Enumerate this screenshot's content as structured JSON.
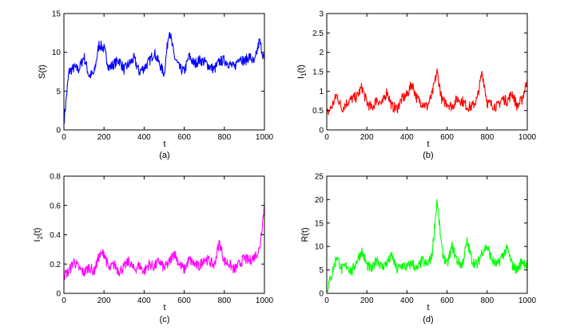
{
  "chart_data": [
    {
      "type": "line",
      "caption": "(a)",
      "xlabel": "t",
      "ylabel": "S(t)",
      "ylabel_parts": {
        "base": "S(t)",
        "sub": ""
      },
      "xlim": [
        0,
        1000
      ],
      "ylim": [
        0,
        15
      ],
      "xticks": [
        0,
        200,
        400,
        600,
        800,
        1000
      ],
      "yticks": [
        0,
        5,
        10,
        15
      ],
      "xtick_labels": [
        "0",
        "200",
        "400",
        "600",
        "800",
        "1000"
      ],
      "ytick_labels": [
        "0",
        "5",
        "10",
        "15"
      ],
      "color": "#0000ff",
      "grid": false,
      "series": [
        {
          "x": [
            0,
            25,
            50,
            75,
            100,
            125,
            150,
            175,
            200,
            225,
            250,
            275,
            300,
            325,
            350,
            375,
            400,
            425,
            450,
            475,
            500,
            525,
            550,
            575,
            600,
            625,
            650,
            675,
            700,
            725,
            750,
            775,
            800,
            825,
            850,
            875,
            900,
            925,
            950,
            975,
            1000
          ],
          "y": [
            1,
            7.5,
            8,
            7.8,
            9.5,
            7,
            7.2,
            11,
            10.5,
            8,
            8.5,
            9,
            7.8,
            8.5,
            9.2,
            7.5,
            8,
            8.8,
            10,
            8.6,
            7.2,
            13,
            9.5,
            8,
            7.5,
            9.5,
            8.5,
            9,
            8.8,
            8.2,
            7.8,
            8.8,
            9,
            8.5,
            8,
            9.5,
            8.8,
            9.5,
            8.6,
            11.5,
            9
          ]
        }
      ]
    },
    {
      "type": "line",
      "caption": "(b)",
      "xlabel": "t",
      "ylabel": "I1(t)",
      "ylabel_parts": {
        "base": "I",
        "sub": "1",
        "tail": "(t)"
      },
      "xlim": [
        0,
        1000
      ],
      "ylim": [
        0,
        3
      ],
      "xticks": [
        0,
        200,
        400,
        600,
        800,
        1000
      ],
      "yticks": [
        0,
        0.5,
        1,
        1.5,
        2,
        2.5,
        3
      ],
      "xtick_labels": [
        "0",
        "200",
        "400",
        "600",
        "800",
        "1000"
      ],
      "ytick_labels": [
        "0",
        "0.5",
        "1",
        "1.5",
        "2",
        "2.5",
        "3"
      ],
      "color": "#ff0000",
      "grid": false,
      "series": [
        {
          "x": [
            0,
            25,
            50,
            75,
            100,
            125,
            150,
            175,
            200,
            225,
            250,
            275,
            300,
            325,
            350,
            375,
            400,
            425,
            450,
            475,
            500,
            525,
            550,
            575,
            600,
            625,
            650,
            675,
            700,
            725,
            750,
            775,
            800,
            825,
            850,
            875,
            900,
            925,
            950,
            975,
            1000
          ],
          "y": [
            0.4,
            0.6,
            0.9,
            0.55,
            0.7,
            0.8,
            0.85,
            1.1,
            0.7,
            0.55,
            0.8,
            0.65,
            1.0,
            0.6,
            0.55,
            0.8,
            0.9,
            1.2,
            0.8,
            0.7,
            0.6,
            0.9,
            1.5,
            0.75,
            0.7,
            0.6,
            0.8,
            0.75,
            0.6,
            0.6,
            0.8,
            1.5,
            0.7,
            0.65,
            0.6,
            0.8,
            0.75,
            0.95,
            0.6,
            0.8,
            1.3
          ]
        }
      ]
    },
    {
      "type": "line",
      "caption": "(c)",
      "xlabel": "t",
      "ylabel": "I2(t)",
      "ylabel_parts": {
        "base": "I",
        "sub": "2",
        "tail": "(t)"
      },
      "xlim": [
        0,
        1000
      ],
      "ylim": [
        0,
        0.8
      ],
      "xticks": [
        0,
        200,
        400,
        600,
        800,
        1000
      ],
      "yticks": [
        0,
        0.2,
        0.4,
        0.6,
        0.8
      ],
      "xtick_labels": [
        "0",
        "200",
        "400",
        "600",
        "800",
        "1000"
      ],
      "ytick_labels": [
        "0",
        "0.2",
        "0.4",
        "0.6",
        "0.8"
      ],
      "color": "#ff00ff",
      "grid": false,
      "series": [
        {
          "x": [
            0,
            25,
            50,
            75,
            100,
            125,
            150,
            175,
            200,
            225,
            250,
            275,
            300,
            325,
            350,
            375,
            400,
            425,
            450,
            475,
            500,
            525,
            550,
            575,
            600,
            625,
            650,
            675,
            700,
            725,
            750,
            775,
            800,
            825,
            850,
            875,
            900,
            925,
            950,
            975,
            1000
          ],
          "y": [
            0.12,
            0.15,
            0.22,
            0.17,
            0.14,
            0.18,
            0.15,
            0.25,
            0.28,
            0.16,
            0.2,
            0.15,
            0.18,
            0.22,
            0.16,
            0.19,
            0.15,
            0.2,
            0.18,
            0.22,
            0.17,
            0.21,
            0.28,
            0.2,
            0.16,
            0.23,
            0.2,
            0.18,
            0.24,
            0.22,
            0.19,
            0.35,
            0.22,
            0.2,
            0.16,
            0.2,
            0.24,
            0.22,
            0.25,
            0.3,
            0.6
          ]
        }
      ]
    },
    {
      "type": "line",
      "caption": "(d)",
      "xlabel": "t",
      "ylabel": "R(t)",
      "ylabel_parts": {
        "base": "R(t)",
        "sub": ""
      },
      "xlim": [
        0,
        1000
      ],
      "ylim": [
        0,
        25
      ],
      "xticks": [
        0,
        200,
        400,
        600,
        800,
        1000
      ],
      "yticks": [
        0,
        5,
        10,
        15,
        20,
        25
      ],
      "xtick_labels": [
        "0",
        "200",
        "400",
        "600",
        "800",
        "1000"
      ],
      "ytick_labels": [
        "0",
        "5",
        "10",
        "15",
        "20",
        "25"
      ],
      "color": "#00ff00",
      "grid": false,
      "series": [
        {
          "x": [
            0,
            25,
            50,
            75,
            100,
            125,
            150,
            175,
            200,
            225,
            250,
            275,
            300,
            325,
            350,
            375,
            400,
            425,
            450,
            475,
            500,
            525,
            550,
            575,
            600,
            625,
            650,
            675,
            700,
            725,
            750,
            775,
            800,
            825,
            850,
            875,
            900,
            925,
            950,
            975,
            1000
          ],
          "y": [
            0.5,
            4,
            8,
            5,
            6,
            4.5,
            7,
            9,
            6,
            5,
            7.5,
            5.5,
            6.5,
            8,
            5,
            6,
            5.5,
            6.5,
            5,
            7,
            6,
            8,
            20,
            9,
            6,
            10,
            7,
            6,
            11,
            7,
            6,
            9,
            10,
            7,
            6,
            8,
            9.5,
            6,
            5,
            7,
            6
          ]
        }
      ]
    }
  ],
  "noise_seed": 7
}
